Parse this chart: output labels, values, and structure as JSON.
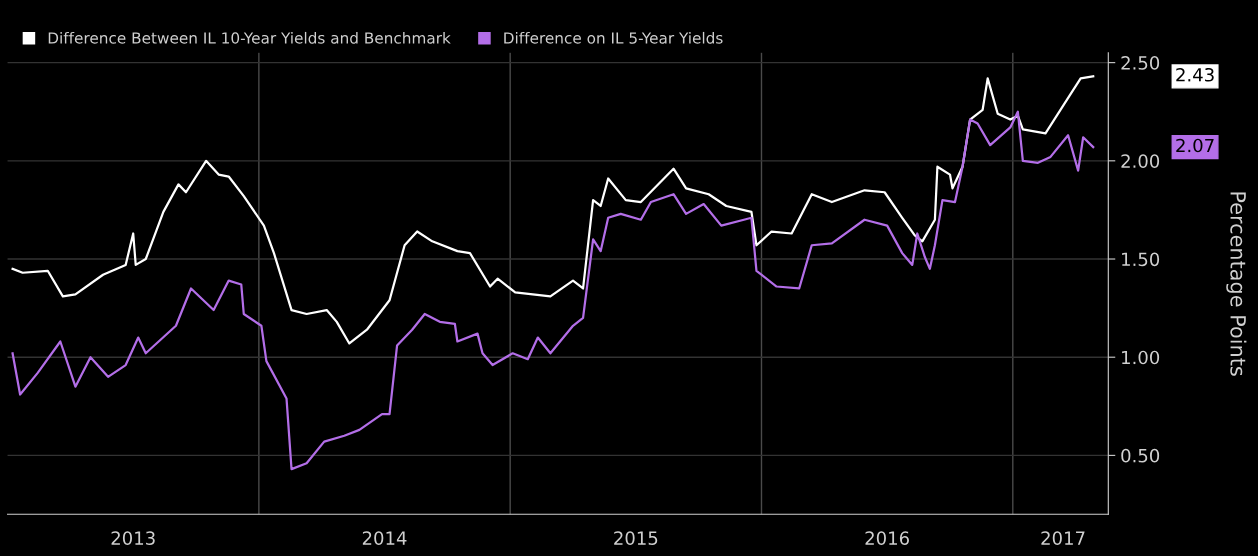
{
  "chart_data": {
    "type": "line",
    "ylabel": "Percentage Points",
    "xlim": [
      2013.0,
      2017.38
    ],
    "ylim": [
      0.2,
      2.55
    ],
    "xticks": [
      {
        "value": 2013.5,
        "label": "2013"
      },
      {
        "value": 2014.5,
        "label": "2014"
      },
      {
        "value": 2015.5,
        "label": "2015"
      },
      {
        "value": 2016.5,
        "label": "2016"
      },
      {
        "value": 2017.2,
        "label": "2017"
      }
    ],
    "yticks": [
      {
        "value": 0.5,
        "label": "0.50"
      },
      {
        "value": 1.0,
        "label": "1.00"
      },
      {
        "value": 1.5,
        "label": "1.50"
      },
      {
        "value": 2.0,
        "label": "2.00"
      },
      {
        "value": 2.5,
        "label": "2.50"
      }
    ],
    "grid": "y",
    "legend": "top left",
    "ref_lines": [
      {
        "axis": "x",
        "value": 2014,
        "color": "#4a4a4a"
      },
      {
        "axis": "x",
        "value": 2015,
        "color": "#4a4a4a"
      },
      {
        "axis": "x",
        "value": 2016,
        "color": "#4a4a4a"
      },
      {
        "axis": "x",
        "value": 2017,
        "color": "#4a4a4a"
      }
    ],
    "annotations": [
      "2.43",
      "2.07"
    ],
    "series": [
      {
        "name": "Difference Between IL 10-Year Yields and Benchmark",
        "color": "#ffffff",
        "x": [
          2013.02,
          2013.06,
          2013.16,
          2013.22,
          2013.27,
          2013.38,
          2013.47,
          2013.5,
          2013.51,
          2013.55,
          2013.62,
          2013.68,
          2013.71,
          2013.79,
          2013.84,
          2013.88,
          2013.94,
          2014.02,
          2014.06,
          2014.13,
          2014.19,
          2014.27,
          2014.31,
          2014.36,
          2014.43,
          2014.52,
          2014.58,
          2014.63,
          2014.69,
          2014.79,
          2014.84,
          2014.92,
          2014.95,
          2015.02,
          2015.16,
          2015.25,
          2015.29,
          2015.33,
          2015.36,
          2015.39,
          2015.46,
          2015.52,
          2015.65,
          2015.7,
          2015.79,
          2015.86,
          2015.96,
          2015.98,
          2016.04,
          2016.12,
          2016.2,
          2016.28,
          2016.41,
          2016.49,
          2016.56,
          2016.61,
          2016.64,
          2016.69,
          2016.7,
          2016.75,
          2016.76,
          2016.8,
          2016.83,
          2016.88,
          2016.9,
          2016.94,
          2016.99,
          2017.02,
          2017.04,
          2017.13,
          2017.21,
          2017.27,
          2017.32
        ],
        "values": [
          1.45,
          1.43,
          1.44,
          1.31,
          1.32,
          1.42,
          1.47,
          1.63,
          1.47,
          1.5,
          1.74,
          1.88,
          1.84,
          2.0,
          1.93,
          1.92,
          1.82,
          1.67,
          1.53,
          1.24,
          1.22,
          1.24,
          1.18,
          1.07,
          1.14,
          1.29,
          1.57,
          1.64,
          1.59,
          1.54,
          1.53,
          1.36,
          1.4,
          1.33,
          1.31,
          1.39,
          1.35,
          1.8,
          1.77,
          1.91,
          1.8,
          1.79,
          1.96,
          1.86,
          1.83,
          1.77,
          1.74,
          1.57,
          1.64,
          1.63,
          1.83,
          1.79,
          1.85,
          1.84,
          1.71,
          1.62,
          1.59,
          1.7,
          1.97,
          1.93,
          1.86,
          1.97,
          2.21,
          2.26,
          2.42,
          2.24,
          2.21,
          2.23,
          2.16,
          2.14,
          2.3,
          2.42,
          2.43
        ]
      },
      {
        "name": "Difference on IL 5-Year Yields",
        "color": "#b36ee8",
        "x": [
          2013.02,
          2013.05,
          2013.12,
          2013.21,
          2013.27,
          2013.33,
          2013.4,
          2013.47,
          2013.52,
          2013.55,
          2013.67,
          2013.73,
          2013.82,
          2013.88,
          2013.93,
          2013.94,
          2014.01,
          2014.03,
          2014.11,
          2014.13,
          2014.19,
          2014.26,
          2014.34,
          2014.4,
          2014.49,
          2014.52,
          2014.55,
          2014.61,
          2014.66,
          2014.72,
          2014.78,
          2014.79,
          2014.87,
          2014.89,
          2014.93,
          2015.01,
          2015.07,
          2015.11,
          2015.16,
          2015.25,
          2015.29,
          2015.33,
          2015.36,
          2015.39,
          2015.44,
          2015.52,
          2015.56,
          2015.65,
          2015.7,
          2015.77,
          2015.84,
          2015.93,
          2015.96,
          2015.98,
          2016.06,
          2016.15,
          2016.2,
          2016.28,
          2016.41,
          2016.5,
          2016.56,
          2016.6,
          2016.62,
          2016.65,
          2016.67,
          2016.69,
          2016.72,
          2016.77,
          2016.8,
          2016.83,
          2016.86,
          2016.91,
          2016.99,
          2017.02,
          2017.04,
          2017.1,
          2017.15,
          2017.22,
          2017.26,
          2017.28,
          2017.32
        ],
        "values": [
          1.02,
          0.81,
          0.92,
          1.08,
          0.85,
          1.0,
          0.9,
          0.96,
          1.1,
          1.02,
          1.16,
          1.35,
          1.24,
          1.39,
          1.37,
          1.22,
          1.16,
          0.98,
          0.79,
          0.43,
          0.46,
          0.57,
          0.6,
          0.63,
          0.71,
          0.71,
          1.06,
          1.14,
          1.22,
          1.18,
          1.17,
          1.08,
          1.12,
          1.02,
          0.96,
          1.02,
          0.99,
          1.1,
          1.02,
          1.16,
          1.2,
          1.6,
          1.54,
          1.71,
          1.73,
          1.7,
          1.79,
          1.83,
          1.73,
          1.78,
          1.67,
          1.7,
          1.71,
          1.44,
          1.36,
          1.35,
          1.57,
          1.58,
          1.7,
          1.67,
          1.53,
          1.47,
          1.63,
          1.51,
          1.45,
          1.57,
          1.8,
          1.79,
          1.97,
          2.21,
          2.19,
          2.08,
          2.17,
          2.25,
          2.0,
          1.99,
          2.02,
          2.13,
          1.95,
          2.12,
          2.07
        ]
      }
    ]
  }
}
